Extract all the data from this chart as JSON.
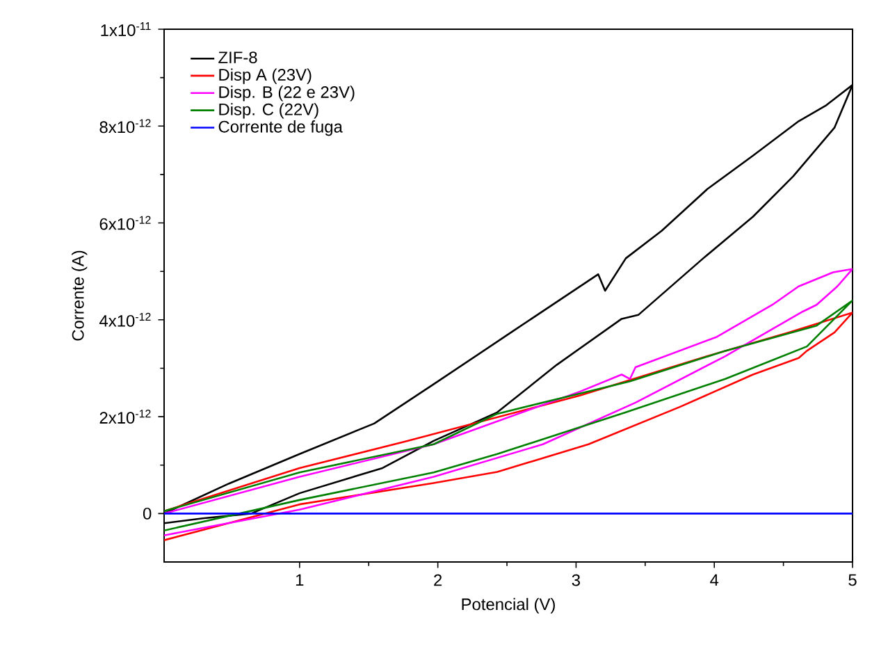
{
  "chart_data": {
    "type": "line",
    "xlabel": "Potencial (V)",
    "ylabel": "Corrente (A)",
    "xlim": [
      0.02,
      5
    ],
    "ylim": [
      -1e-12,
      1e-11
    ],
    "xticks": [
      1,
      2,
      3,
      4,
      5
    ],
    "yticks": [
      0,
      {
        "value": 2e-12,
        "label": "2x10$^{-12}$"
      },
      {
        "value": 4e-12,
        "label": "4x10$^{-12}$"
      },
      {
        "value": 6e-12,
        "label": "6x10$^{-12}$"
      },
      {
        "value": 8e-12,
        "label": "8x10$^{-12}$"
      },
      {
        "value": 1e-11,
        "label": "1x10$^{-11}$"
      }
    ],
    "legend": "top left",
    "grid": false,
    "line_style": "solid",
    "series": [
      {
        "name": "ZIF-8",
        "color": "#000000",
        "x": [
          0.02,
          0.3,
          0.65,
          1,
          1.6,
          1.97,
          2.43,
          2.86,
          3.33,
          3.45,
          3.92,
          4.28,
          4.57,
          4.87,
          5,
          4.81,
          4.61,
          4.28,
          3.95,
          3.62,
          3.36,
          3.21,
          3.16,
          2.53,
          1.97,
          1.54,
          1,
          0.49,
          0.02
        ],
        "values": [
          -2e-13,
          -1e-13,
          0,
          4.2e-13,
          9.4e-13,
          1.5e-12,
          2.09e-12,
          3.07e-12,
          4.02e-12,
          4.1e-12,
          5.27e-12,
          6.13e-12,
          6.96e-12,
          7.97e-12,
          8.85e-12,
          8.43e-12,
          8.1e-12,
          7.39e-12,
          6.7e-12,
          5.84e-12,
          5.27e-12,
          4.6e-12,
          4.94e-12,
          3.74e-12,
          2.67e-12,
          1.86e-12,
          1.23e-12,
          6.2e-13,
          0
        ]
      },
      {
        "name": "Disp A (23V)",
        "color": "#ff0000",
        "x": [
          0.02,
          1,
          1.97,
          2.43,
          3.09,
          3.75,
          4.28,
          4.61,
          4.67,
          4.87,
          5,
          4.54,
          3.95,
          3.03,
          1.77,
          1,
          0.02
        ],
        "values": [
          -5.5e-13,
          1.9e-13,
          6.3e-13,
          8.6e-13,
          1.43e-12,
          2.2e-12,
          2.87e-12,
          3.21e-12,
          3.36e-12,
          3.74e-12,
          4.15e-12,
          3.74e-12,
          3.25e-12,
          2.44e-12,
          1.49e-12,
          9.4e-13,
          5e-14
        ]
      },
      {
        "name": "Disp. B (22 e 23V)",
        "color": "#ff00ff",
        "x": [
          0.02,
          1,
          1.97,
          2.76,
          3.43,
          4.08,
          4.64,
          4.74,
          4.89,
          5,
          4.86,
          4.61,
          4.42,
          4.02,
          3.43,
          3.39,
          3.33,
          3.03,
          1.97,
          1,
          0.02
        ],
        "values": [
          -4.5e-13,
          8e-14,
          7.6e-13,
          1.43e-12,
          2.29e-12,
          3.25e-12,
          4.17e-12,
          4.31e-12,
          4.69e-12,
          5.05e-12,
          4.98e-12,
          4.69e-12,
          4.31e-12,
          3.65e-12,
          3.02e-12,
          2.78e-12,
          2.87e-12,
          2.52e-12,
          1.43e-12,
          7.6e-13,
          0
        ]
      },
      {
        "name": "Disp. C (22V)",
        "color": "#008000",
        "x": [
          0.02,
          1,
          1.97,
          2.43,
          3.36,
          4.08,
          4.67,
          5,
          4.74,
          4.08,
          3.39,
          2.43,
          1.97,
          1,
          0.02
        ],
        "values": [
          -3.5e-13,
          2.8e-13,
          8.5e-13,
          1.23e-12,
          2.09e-12,
          2.78e-12,
          3.45e-12,
          4.4e-12,
          3.88e-12,
          3.36e-12,
          2.73e-12,
          2.06e-12,
          1.43e-12,
          8.5e-13,
          5e-14
        ]
      },
      {
        "name": "Corrente de fuga",
        "color": "#0000ff",
        "x": [
          0.02,
          5
        ],
        "values": [
          0,
          0
        ]
      }
    ]
  }
}
